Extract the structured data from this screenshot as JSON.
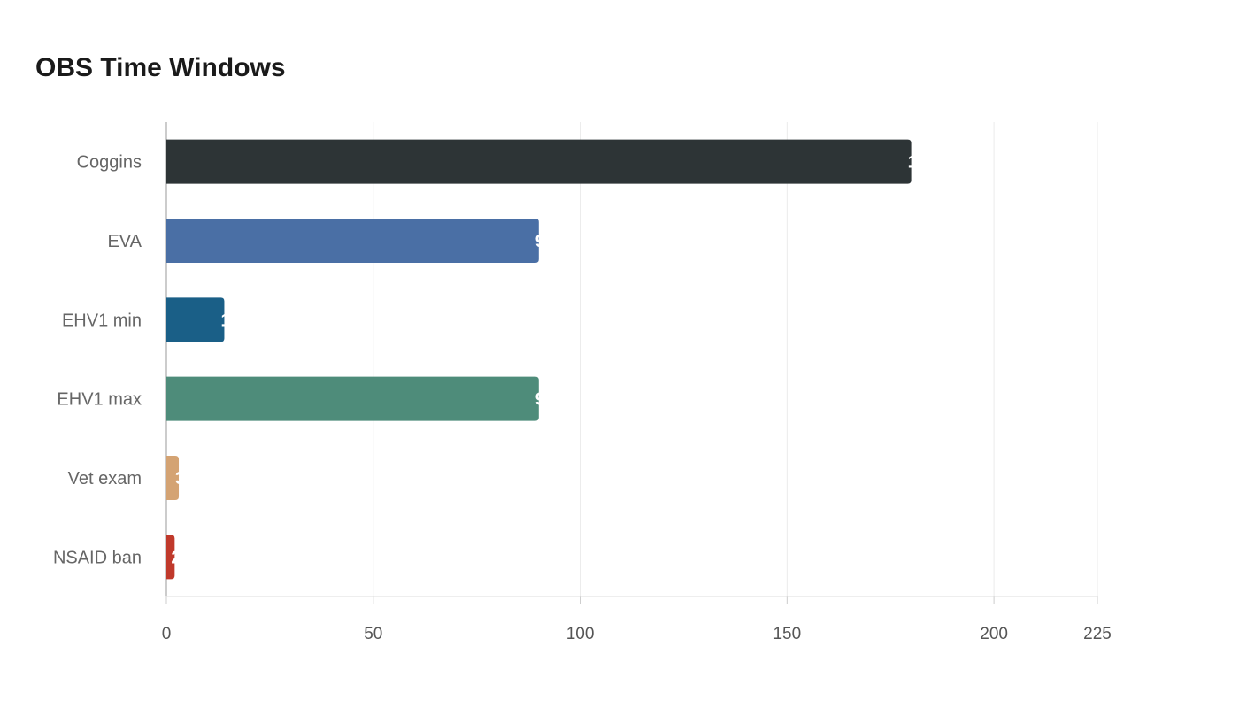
{
  "chart_data": {
    "type": "bar",
    "orientation": "horizontal",
    "title": "OBS Time Windows",
    "categories": [
      "Coggins",
      "EVA",
      "EHV1 min",
      "EHV1 max",
      "Vet exam",
      "NSAID ban"
    ],
    "values": [
      180,
      90,
      14,
      90,
      3,
      2
    ],
    "colors": [
      "#2d3436",
      "#4a6fa5",
      "#1a5f87",
      "#4e8c7a",
      "#d4a373",
      "#c0392b"
    ],
    "xlim": [
      0,
      225
    ],
    "xticks": [
      0,
      50,
      100,
      150,
      200,
      225
    ],
    "grid": true,
    "data_labels": true,
    "xlabel": "",
    "ylabel": ""
  }
}
